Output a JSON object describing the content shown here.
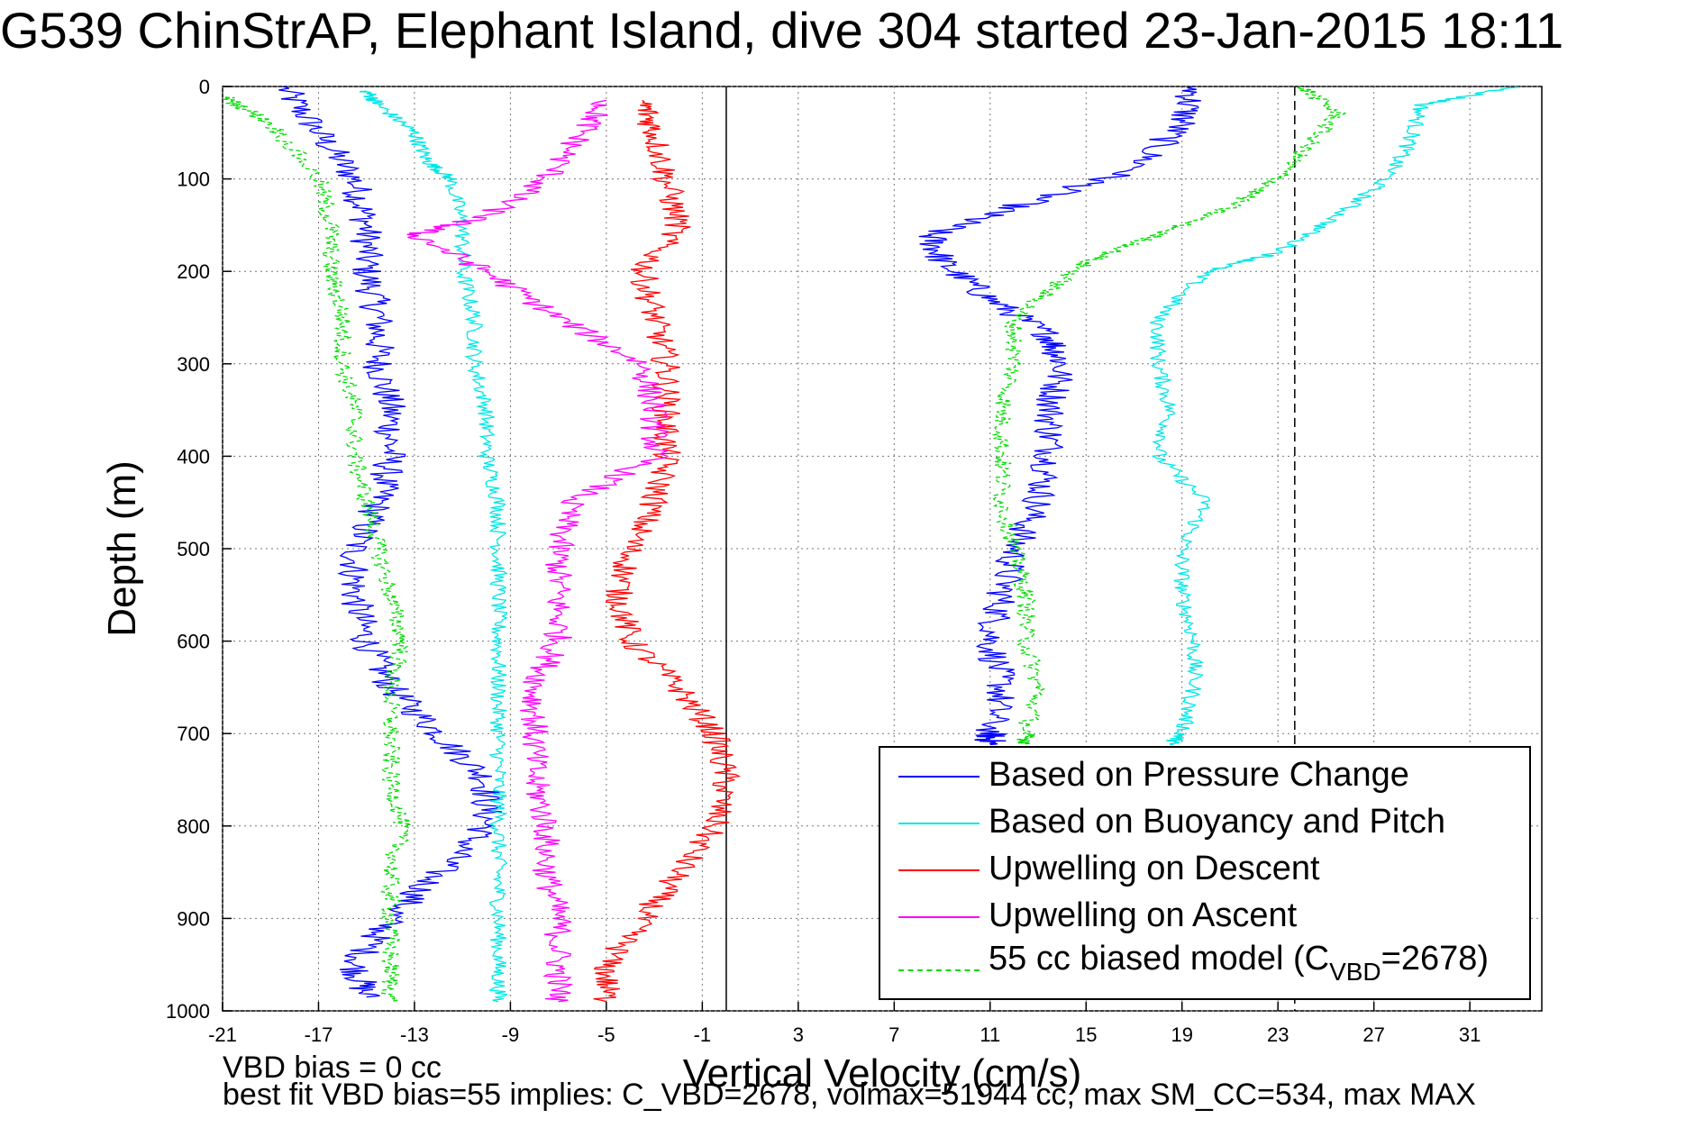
{
  "title": "G539 ChinStrAP, Elephant Island, dive 304 started 23-Jan-2015 18:11",
  "footer": {
    "line1": "VBD bias = 0 cc",
    "line2": "best fit VBD bias=55 implies: C_VBD=2678, volmax=51944 cc, max SM_CC=534, max MAX"
  },
  "chart_data": {
    "type": "line",
    "title": "G539 ChinStrAP, Elephant Island, dive 304 started 23-Jan-2015 18:11",
    "xlabel": "Vertical Velocity (cm/s)",
    "ylabel": "Depth (m)",
    "xlim": [
      -21,
      34
    ],
    "ylim": [
      0,
      1000
    ],
    "y_reversed": true,
    "grid": true,
    "legend_position": "bottom-right",
    "x_ticks": [
      "-21",
      "-17",
      "-13",
      "-9",
      "-5",
      "-1",
      "3",
      "7",
      "11",
      "15",
      "19",
      "23",
      "27",
      "31"
    ],
    "y_ticks": [
      "0",
      "100",
      "200",
      "300",
      "400",
      "500",
      "600",
      "700",
      "800",
      "900",
      "1000"
    ],
    "reference_lines": [
      {
        "orientation": "vertical",
        "x": 0,
        "style": "solid",
        "color": "#000000"
      },
      {
        "orientation": "vertical",
        "x": 23.7,
        "style": "dashed",
        "color": "#000000"
      }
    ],
    "series": [
      {
        "name": "Based on Pressure Change",
        "color": "#0000ff",
        "style": "solid",
        "wiggle": 0.7,
        "points": [
          [
            [
              -18.5,
              0
            ],
            [
              -17.0,
              50
            ],
            [
              -15.5,
              100
            ],
            [
              -15.0,
              150
            ],
            [
              -15.0,
              200
            ],
            [
              -14.5,
              250
            ],
            [
              -14.5,
              300
            ],
            [
              -14.0,
              350
            ],
            [
              -14.0,
              400
            ],
            [
              -14.5,
              450
            ],
            [
              -15.5,
              500
            ],
            [
              -15.5,
              550
            ],
            [
              -15.0,
              600
            ],
            [
              -14.0,
              650
            ],
            [
              -12.0,
              700
            ],
            [
              -10.0,
              750
            ],
            [
              -10.0,
              800
            ],
            [
              -12.0,
              850
            ],
            [
              -14.0,
              900
            ],
            [
              -15.5,
              950
            ],
            [
              -15.0,
              985
            ]
          ],
          [
            [
              19.5,
              0
            ],
            [
              19.0,
              40
            ],
            [
              17.0,
              90
            ],
            [
              12.0,
              130
            ],
            [
              8.5,
              160
            ],
            [
              9.0,
              190
            ],
            [
              11.0,
              230
            ],
            [
              13.5,
              270
            ],
            [
              14.0,
              300
            ],
            [
              13.5,
              350
            ],
            [
              13.5,
              400
            ],
            [
              13.0,
              450
            ],
            [
              12.0,
              500
            ],
            [
              11.5,
              550
            ],
            [
              11.0,
              600
            ],
            [
              11.5,
              650
            ],
            [
              11.0,
              700
            ],
            [
              11.0,
              712
            ]
          ]
        ]
      },
      {
        "name": "Based on Buoyancy and Pitch",
        "color": "#00e6e6",
        "style": "solid",
        "wiggle": 0.35,
        "points": [
          [
            [
              -15.0,
              5
            ],
            [
              -14.5,
              20
            ],
            [
              -13.0,
              50
            ],
            [
              -12.5,
              80
            ],
            [
              -11.5,
              100
            ],
            [
              -11.0,
              150
            ],
            [
              -11.0,
              200
            ],
            [
              -10.5,
              250
            ],
            [
              -10.5,
              300
            ],
            [
              -10.0,
              350
            ],
            [
              -10.0,
              400
            ],
            [
              -9.5,
              450
            ],
            [
              -9.5,
              500
            ],
            [
              -9.5,
              550
            ],
            [
              -9.5,
              600
            ],
            [
              -9.5,
              650
            ],
            [
              -9.5,
              700
            ],
            [
              -9.5,
              750
            ],
            [
              -9.5,
              800
            ],
            [
              -9.5,
              850
            ],
            [
              -9.5,
              900
            ],
            [
              -9.5,
              950
            ],
            [
              -9.5,
              990
            ]
          ],
          [
            [
              33.0,
              0
            ],
            [
              29.0,
              20
            ],
            [
              28.5,
              60
            ],
            [
              27.5,
              100
            ],
            [
              25.5,
              140
            ],
            [
              23.0,
              180
            ],
            [
              20.0,
              200
            ],
            [
              18.0,
              250
            ],
            [
              18.0,
              300
            ],
            [
              18.5,
              350
            ],
            [
              18.0,
              400
            ],
            [
              20.0,
              450
            ],
            [
              19.0,
              500
            ],
            [
              19.0,
              550
            ],
            [
              19.5,
              600
            ],
            [
              19.5,
              650
            ],
            [
              19.0,
              700
            ],
            [
              18.5,
              712
            ]
          ]
        ]
      },
      {
        "name": "Upwelling on Descent",
        "color": "#ff0000",
        "style": "solid",
        "wiggle": 0.6,
        "points": [
          [
            [
              -3.5,
              15
            ],
            [
              -3.0,
              50
            ],
            [
              -2.5,
              100
            ],
            [
              -2.0,
              150
            ],
            [
              -3.5,
              200
            ],
            [
              -3.0,
              250
            ],
            [
              -2.5,
              300
            ],
            [
              -2.5,
              350
            ],
            [
              -2.5,
              400
            ],
            [
              -3.0,
              450
            ],
            [
              -4.0,
              500
            ],
            [
              -4.5,
              550
            ],
            [
              -4.0,
              600
            ],
            [
              -2.0,
              650
            ],
            [
              -0.5,
              700
            ],
            [
              0.0,
              750
            ],
            [
              -0.5,
              800
            ],
            [
              -2.0,
              850
            ],
            [
              -3.5,
              900
            ],
            [
              -5.0,
              950
            ],
            [
              -5.0,
              990
            ]
          ]
        ]
      },
      {
        "name": "Upwelling on Ascent",
        "color": "#ff00ff",
        "style": "solid",
        "wiggle": 0.6,
        "points": [
          [
            [
              -5.0,
              15
            ],
            [
              -6.0,
              50
            ],
            [
              -7.5,
              100
            ],
            [
              -10.0,
              140
            ],
            [
              -13.0,
              160
            ],
            [
              -10.0,
              200
            ],
            [
              -7.0,
              250
            ],
            [
              -3.5,
              300
            ],
            [
              -3.0,
              350
            ],
            [
              -3.0,
              400
            ],
            [
              -6.5,
              450
            ],
            [
              -7.0,
              500
            ],
            [
              -7.0,
              550
            ],
            [
              -7.0,
              600
            ],
            [
              -8.0,
              650
            ],
            [
              -8.0,
              700
            ],
            [
              -8.0,
              750
            ],
            [
              -7.5,
              800
            ],
            [
              -7.5,
              850
            ],
            [
              -7.0,
              900
            ],
            [
              -7.0,
              950
            ],
            [
              -7.0,
              990
            ]
          ]
        ]
      },
      {
        "name": "55 cc biased model (C_VBD=2678)",
        "color": "#00dd00",
        "style": "dashed",
        "wiggle": 0.4,
        "points": [
          [
            [
              -21.0,
              10
            ],
            [
              -19.0,
              40
            ],
            [
              -17.0,
              100
            ],
            [
              -16.5,
              150
            ],
            [
              -16.5,
              200
            ],
            [
              -16.0,
              250
            ],
            [
              -16.0,
              300
            ],
            [
              -15.5,
              350
            ],
            [
              -15.5,
              400
            ],
            [
              -15.0,
              450
            ],
            [
              -14.5,
              500
            ],
            [
              -14.0,
              550
            ],
            [
              -13.5,
              600
            ],
            [
              -14.0,
              650
            ],
            [
              -14.0,
              700
            ],
            [
              -14.0,
              750
            ],
            [
              -13.5,
              800
            ],
            [
              -14.0,
              850
            ],
            [
              -14.0,
              900
            ],
            [
              -14.0,
              950
            ],
            [
              -14.0,
              990
            ]
          ],
          [
            [
              24.0,
              0
            ],
            [
              25.5,
              30
            ],
            [
              24.0,
              70
            ],
            [
              23.0,
              100
            ],
            [
              21.0,
              130
            ],
            [
              18.0,
              160
            ],
            [
              15.0,
              190
            ],
            [
              13.5,
              220
            ],
            [
              12.0,
              250
            ],
            [
              12.0,
              300
            ],
            [
              11.5,
              350
            ],
            [
              11.5,
              400
            ],
            [
              11.5,
              450
            ],
            [
              12.0,
              500
            ],
            [
              12.5,
              550
            ],
            [
              12.5,
              600
            ],
            [
              13.0,
              650
            ],
            [
              12.5,
              700
            ],
            [
              12.5,
              712
            ]
          ]
        ]
      }
    ]
  }
}
